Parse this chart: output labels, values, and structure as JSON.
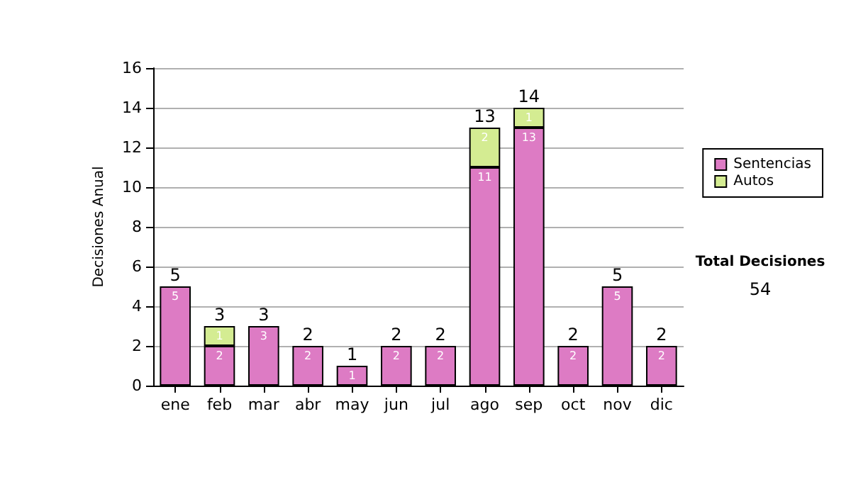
{
  "chart_data": {
    "type": "bar",
    "stacked": true,
    "ylabel": "Decisiones Anual",
    "categories": [
      "ene",
      "feb",
      "mar",
      "abr",
      "may",
      "jun",
      "jul",
      "ago",
      "sep",
      "oct",
      "nov",
      "dic"
    ],
    "series": [
      {
        "name": "Sentencias",
        "color": "#dd7bc4",
        "values": [
          5,
          2,
          3,
          2,
          1,
          2,
          2,
          11,
          13,
          2,
          5,
          2
        ]
      },
      {
        "name": "Autos",
        "color": "#d4ec92",
        "values": [
          null,
          1,
          null,
          null,
          null,
          null,
          null,
          2,
          1,
          null,
          null,
          null
        ]
      }
    ],
    "totals": [
      "5",
      "3",
      "3",
      "2",
      "1",
      "2",
      "2",
      "13",
      "14",
      "2",
      "5",
      "2"
    ],
    "data_labels": true,
    "ylim": [
      0,
      16
    ],
    "yticks": [
      0,
      2,
      4,
      6,
      8,
      10,
      12,
      14,
      16
    ],
    "grid": "y",
    "legend": "right",
    "annotations": [
      "Total Decisiones",
      "54"
    ]
  }
}
